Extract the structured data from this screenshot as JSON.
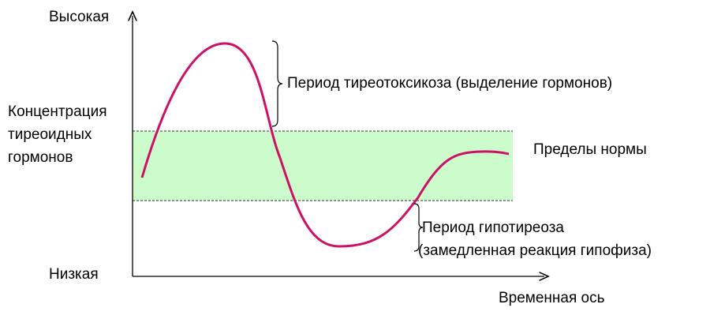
{
  "axis": {
    "high": "Высокая",
    "low": "Низкая",
    "y_label": [
      "Концентрация",
      "тиреоидных",
      "гормонов"
    ],
    "x_label": "Временная ось"
  },
  "annotations": {
    "thyrotoxicosis": "Период тиреотоксикоза (выделение гормонов)",
    "normal_range": "Пределы нормы",
    "hypothyroidism": [
      "Период гипотиреоза",
      "(замедленная реакция гипофиза)"
    ]
  }
}
